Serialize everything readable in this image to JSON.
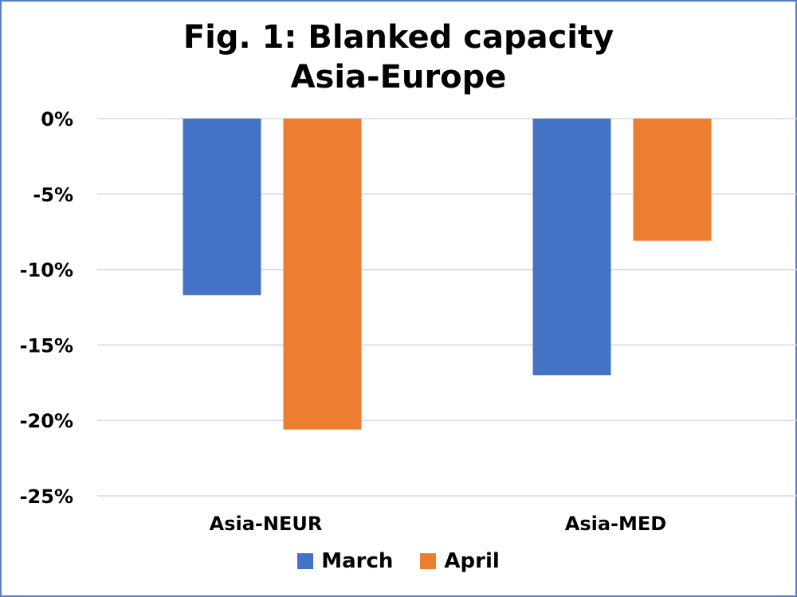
{
  "chart_data": {
    "type": "bar",
    "title": "Fig. 1: Blanked capacity",
    "subtitle": "Asia-Europe",
    "categories": [
      "Asia-NEUR",
      "Asia-MED"
    ],
    "series": [
      {
        "name": "March",
        "values": [
          -11.7,
          -17.0
        ],
        "color": "#4472c4"
      },
      {
        "name": "April",
        "values": [
          -20.6,
          -8.1
        ],
        "color": "#ed7d31"
      }
    ],
    "ylim": [
      -25,
      0
    ],
    "yticks": [
      0,
      -5,
      -10,
      -15,
      -20,
      -25
    ],
    "ytick_labels": [
      "0%",
      "-5%",
      "-10%",
      "-15%",
      "-20%",
      "-25%"
    ],
    "grid": true,
    "legend_position": "bottom"
  }
}
